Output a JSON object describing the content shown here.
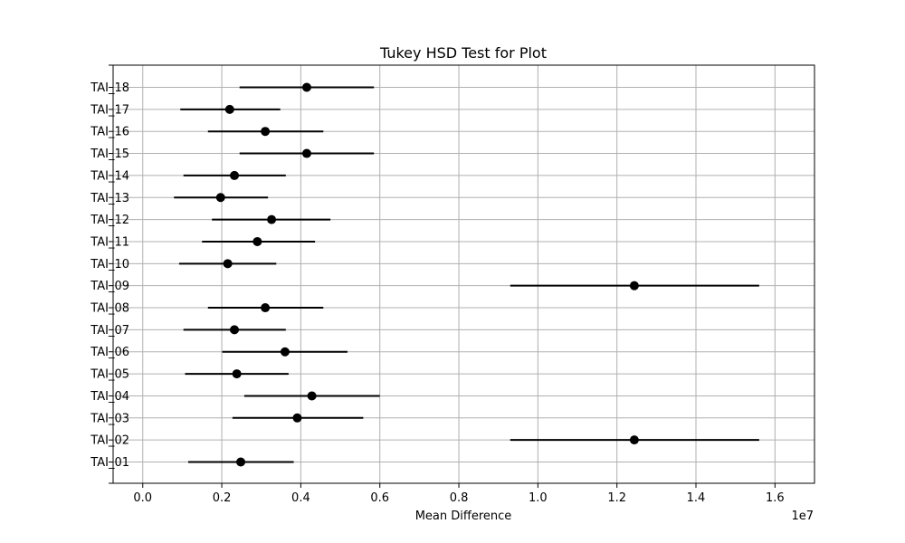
{
  "chart_data": {
    "type": "scatter",
    "title": "Tukey HSD Test for Plot",
    "xlabel": "Mean Difference",
    "ylabel": "",
    "x_offset_label": "1e7",
    "xlim": [
      -750000,
      17000000
    ],
    "x_ticks": [
      0,
      2000000,
      4000000,
      6000000,
      8000000,
      10000000,
      12000000,
      14000000,
      16000000
    ],
    "x_tick_labels": [
      "0.0",
      "0.2",
      "0.4",
      "0.6",
      "0.8",
      "1.0",
      "1.2",
      "1.4",
      "1.6"
    ],
    "grid": true,
    "points": [
      {
        "label": "TAI_18",
        "x": 4150000,
        "lower": 2450000,
        "upper": 5850000
      },
      {
        "label": "TAI_17",
        "x": 2200000,
        "lower": 950000,
        "upper": 3480000
      },
      {
        "label": "TAI_16",
        "x": 3100000,
        "lower": 1650000,
        "upper": 4570000
      },
      {
        "label": "TAI_15",
        "x": 4150000,
        "lower": 2450000,
        "upper": 5850000
      },
      {
        "label": "TAI_14",
        "x": 2320000,
        "lower": 1030000,
        "upper": 3620000
      },
      {
        "label": "TAI_13",
        "x": 1970000,
        "lower": 790000,
        "upper": 3170000
      },
      {
        "label": "TAI_12",
        "x": 3260000,
        "lower": 1750000,
        "upper": 4750000
      },
      {
        "label": "TAI_11",
        "x": 2900000,
        "lower": 1500000,
        "upper": 4360000
      },
      {
        "label": "TAI_10",
        "x": 2150000,
        "lower": 920000,
        "upper": 3380000
      },
      {
        "label": "TAI_09",
        "x": 12440000,
        "lower": 9300000,
        "upper": 15600000
      },
      {
        "label": "TAI_08",
        "x": 3100000,
        "lower": 1650000,
        "upper": 4570000
      },
      {
        "label": "TAI_07",
        "x": 2320000,
        "lower": 1030000,
        "upper": 3620000
      },
      {
        "label": "TAI_06",
        "x": 3600000,
        "lower": 2010000,
        "upper": 5180000
      },
      {
        "label": "TAI_05",
        "x": 2380000,
        "lower": 1070000,
        "upper": 3690000
      },
      {
        "label": "TAI_04",
        "x": 4280000,
        "lower": 2570000,
        "upper": 6000000
      },
      {
        "label": "TAI_03",
        "x": 3910000,
        "lower": 2270000,
        "upper": 5580000
      },
      {
        "label": "TAI_02",
        "x": 12440000,
        "lower": 9300000,
        "upper": 15600000
      },
      {
        "label": "TAI_01",
        "x": 2480000,
        "lower": 1150000,
        "upper": 3820000
      }
    ],
    "marker_color": "#000000",
    "interval_color": "#000000",
    "grid_color": "#b0b0b0"
  }
}
